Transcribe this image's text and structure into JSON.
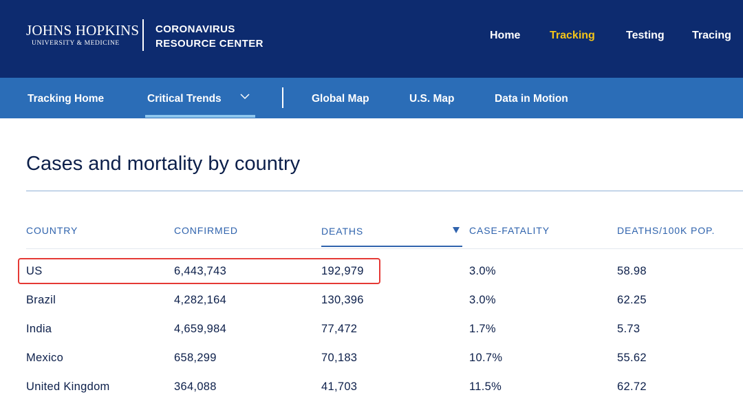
{
  "header": {
    "logo_line1": "JOHNS HOPKINS",
    "logo_line2": "UNIVERSITY & MEDICINE",
    "center_line1": "CORONAVIRUS",
    "center_line2": "RESOURCE CENTER",
    "nav": [
      "Home",
      "Tracking",
      "Testing",
      "Tracing"
    ],
    "active_nav": "Tracking"
  },
  "subnav": {
    "items": [
      "Tracking Home",
      "Critical Trends",
      "Global Map",
      "U.S. Map",
      "Data in Motion"
    ],
    "active": "Critical Trends"
  },
  "main": {
    "title": "Cases and mortality by country",
    "columns": [
      "COUNTRY",
      "CONFIRMED",
      "DEATHS",
      "CASE-FATALITY",
      "DEATHS/100K POP."
    ],
    "sorted_column": "DEATHS",
    "sort_direction": "descending",
    "rows": [
      [
        "US",
        "6,443,743",
        "192,979",
        "3.0%",
        "58.98"
      ],
      [
        "Brazil",
        "4,282,164",
        "130,396",
        "3.0%",
        "62.25"
      ],
      [
        "India",
        "4,659,984",
        "77,472",
        "1.7%",
        "5.73"
      ],
      [
        "Mexico",
        "658,299",
        "70,183",
        "10.7%",
        "55.62"
      ],
      [
        "United Kingdom",
        "364,088",
        "41,703",
        "11.5%",
        "62.72"
      ]
    ],
    "highlighted_row": "US"
  },
  "colors": {
    "header_bg": "#0d2b6f",
    "subnav_bg": "#2b6db7",
    "active_nav": "#f5c518",
    "header_text": "#2f63ad",
    "highlight": "#e53935"
  }
}
